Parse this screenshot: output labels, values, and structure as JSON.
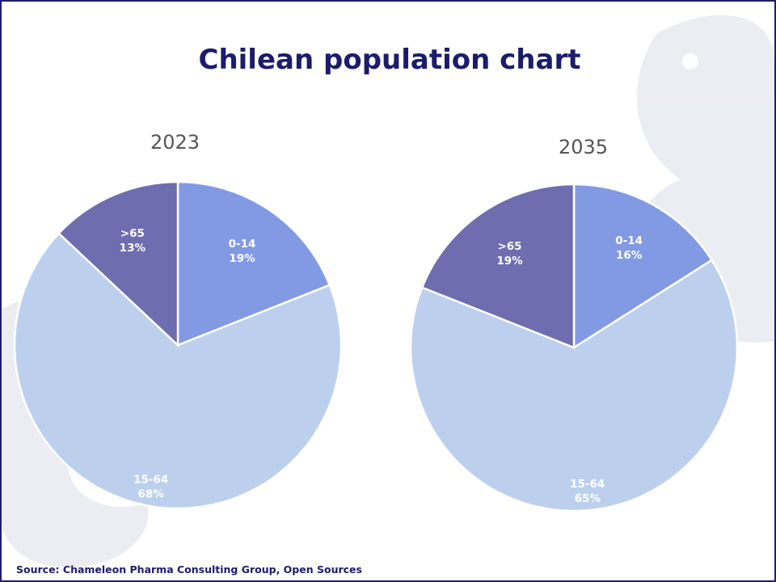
{
  "title": "Chilean population chart",
  "source": "Source: Chameleon Pharma Consulting Group, Open Sources",
  "colors": {
    "age_0_14": "#8299e4",
    "age_15_64": "#bcd0ee",
    "age_65_plus": "#6e6db0",
    "title": "#1c1c6b",
    "border": "#1e1e6e"
  },
  "chart_data": [
    {
      "type": "pie",
      "title": "2023",
      "slices": [
        {
          "label": "0-14",
          "value": 19,
          "display": "19%",
          "color_key": "age_0_14"
        },
        {
          "label": "15-64",
          "value": 68,
          "display": "68%",
          "color_key": "age_15_64"
        },
        {
          "label": ">65",
          "value": 13,
          "display": "13%",
          "color_key": "age_65_plus"
        }
      ]
    },
    {
      "type": "pie",
      "title": "2035",
      "slices": [
        {
          "label": "0-14",
          "value": 16,
          "display": "16%",
          "color_key": "age_0_14"
        },
        {
          "label": "15-64",
          "value": 65,
          "display": "65%",
          "color_key": "age_15_64"
        },
        {
          "label": ">65",
          "value": 19,
          "display": "19%",
          "color_key": "age_65_plus"
        }
      ]
    }
  ]
}
